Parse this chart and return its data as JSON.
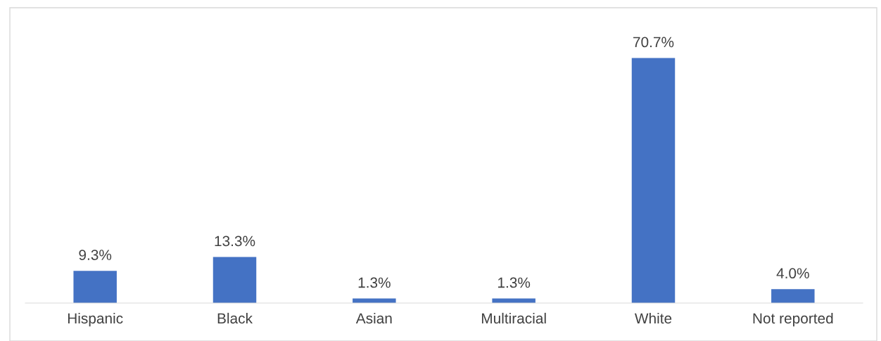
{
  "chart_data": {
    "type": "bar",
    "categories": [
      "Hispanic",
      "Black",
      "Asian",
      "Multiracial",
      "White",
      "Not reported"
    ],
    "values": [
      9.3,
      13.3,
      1.3,
      1.3,
      70.7,
      4.0
    ],
    "value_labels": [
      "9.3%",
      "13.3%",
      "1.3%",
      "1.3%",
      "70.7%",
      "4.0%"
    ],
    "color": "#4472c4",
    "ylim": [
      0,
      85
    ],
    "tick_labels": "x",
    "grid": false
  }
}
